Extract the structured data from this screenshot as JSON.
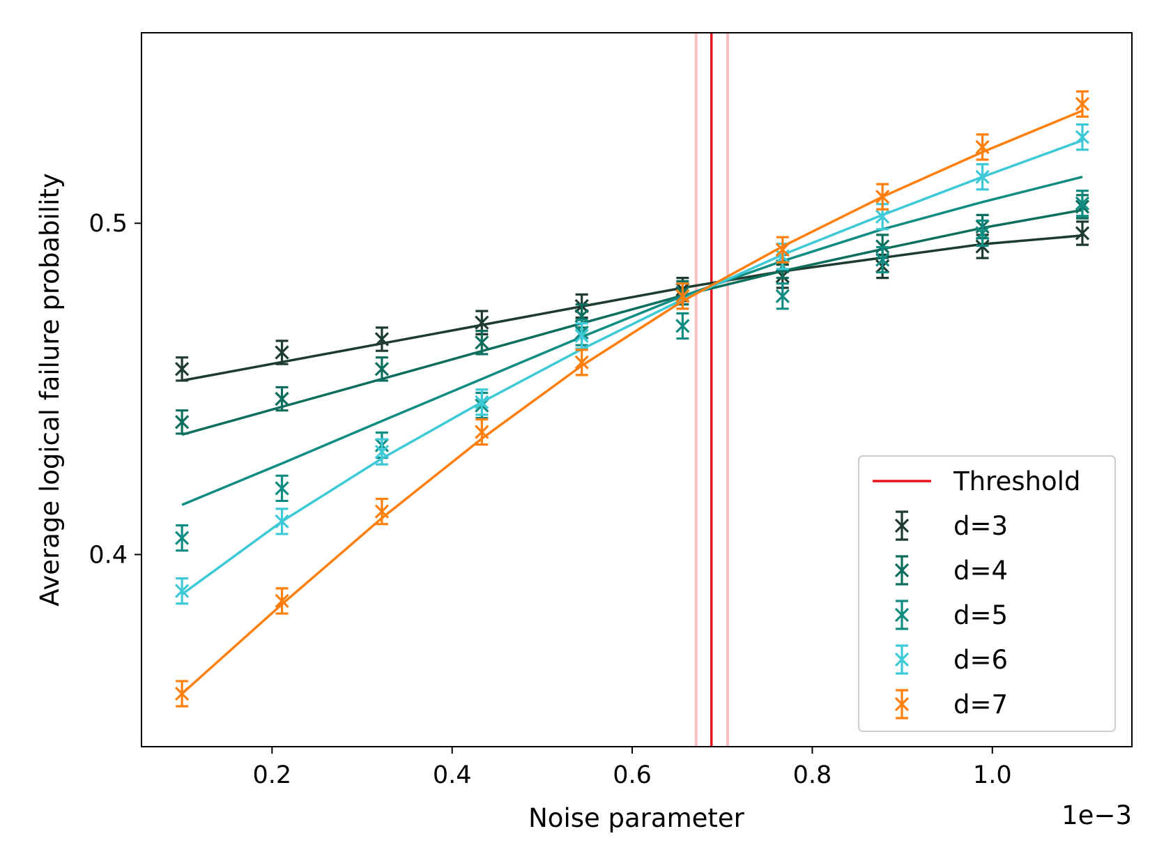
{
  "chart_data": {
    "type": "line",
    "title": "",
    "xlabel": "Noise parameter",
    "ylabel": "Average logical failure probability",
    "x_offset_text": "1e−3",
    "xlim": [
      0.055,
      1.155
    ],
    "ylim": [
      0.342,
      0.5575
    ],
    "xticks": [
      0.2,
      0.4,
      0.6,
      0.8,
      1.0
    ],
    "xtick_labels": [
      "0.2",
      "0.4",
      "0.6",
      "0.8",
      "1.0"
    ],
    "yticks": [
      0.4,
      0.5
    ],
    "ytick_labels": [
      "0.4",
      "0.5"
    ],
    "x_scale_note": "x values shown in units of 1e-3",
    "threshold": {
      "label": "Threshold",
      "value": 0.688,
      "band": [
        0.671,
        0.706
      ],
      "color": "#e8141c",
      "band_color": "#f7a8ab"
    },
    "x": [
      0.1,
      0.211,
      0.322,
      0.433,
      0.544,
      0.656,
      0.767,
      0.878,
      0.989,
      1.1
    ],
    "series": [
      {
        "name": "d=3",
        "color": "#1e3b2f",
        "values": [
          0.456,
          0.461,
          0.465,
          0.47,
          0.475,
          0.48,
          0.484,
          0.487,
          0.493,
          0.497
        ],
        "errors": [
          0.0035,
          0.0035,
          0.0035,
          0.0035,
          0.0035,
          0.0035,
          0.0035,
          0.0035,
          0.0035,
          0.0035
        ],
        "fit": [
          0.4525,
          0.4581,
          0.4637,
          0.4693,
          0.4749,
          0.4805,
          0.4855,
          0.4896,
          0.4937,
          0.4963
        ]
      },
      {
        "name": "d=4",
        "color": "#0d6e5e",
        "values": [
          0.44,
          0.447,
          0.456,
          0.464,
          0.472,
          0.479,
          0.487,
          0.493,
          0.499,
          0.505
        ],
        "errors": [
          0.0035,
          0.0035,
          0.0035,
          0.0035,
          0.0035,
          0.0035,
          0.0035,
          0.0035,
          0.0035,
          0.0035
        ],
        "fit": [
          0.4362,
          0.4446,
          0.453,
          0.4614,
          0.4698,
          0.4782,
          0.4856,
          0.4922,
          0.4986,
          0.504
        ]
      },
      {
        "name": "d=5",
        "color": "#118c82",
        "values": [
          0.405,
          0.42,
          0.433,
          0.445,
          0.467,
          0.469,
          0.478,
          0.489,
          0.497,
          0.506
        ],
        "errors": [
          0.0038,
          0.0038,
          0.0038,
          0.0038,
          0.0038,
          0.0038,
          0.0038,
          0.0038,
          0.0038,
          0.0038
        ],
        "fit": [
          0.415,
          0.4275,
          0.4403,
          0.453,
          0.4657,
          0.478,
          0.4886,
          0.4982,
          0.5064,
          0.514
        ]
      },
      {
        "name": "d=6",
        "color": "#3ec9d6",
        "values": [
          0.389,
          0.41,
          0.431,
          0.446,
          0.466,
          0.478,
          0.49,
          0.502,
          0.514,
          0.526
        ],
        "errors": [
          0.0038,
          0.0038,
          0.0038,
          0.0038,
          0.0038,
          0.0038,
          0.0038,
          0.0038,
          0.0038,
          0.0038
        ],
        "fit": [
          0.388,
          0.41,
          0.429,
          0.446,
          0.462,
          0.477,
          0.4905,
          0.5025,
          0.514,
          0.525
        ]
      },
      {
        "name": "d=7",
        "color": "#ff7f0e",
        "values": [
          0.358,
          0.386,
          0.413,
          0.437,
          0.458,
          0.478,
          0.492,
          0.508,
          0.523,
          0.536
        ],
        "errors": [
          0.0038,
          0.0038,
          0.0038,
          0.0038,
          0.0038,
          0.0038,
          0.0038,
          0.0038,
          0.0038,
          0.0038
        ],
        "fit": [
          0.358,
          0.385,
          0.411,
          0.435,
          0.457,
          0.4765,
          0.493,
          0.508,
          0.5215,
          0.534
        ]
      }
    ],
    "legend": {
      "position": "lower right",
      "entries": [
        "Threshold",
        "d=3",
        "d=4",
        "d=5",
        "d=6",
        "d=7"
      ]
    }
  }
}
